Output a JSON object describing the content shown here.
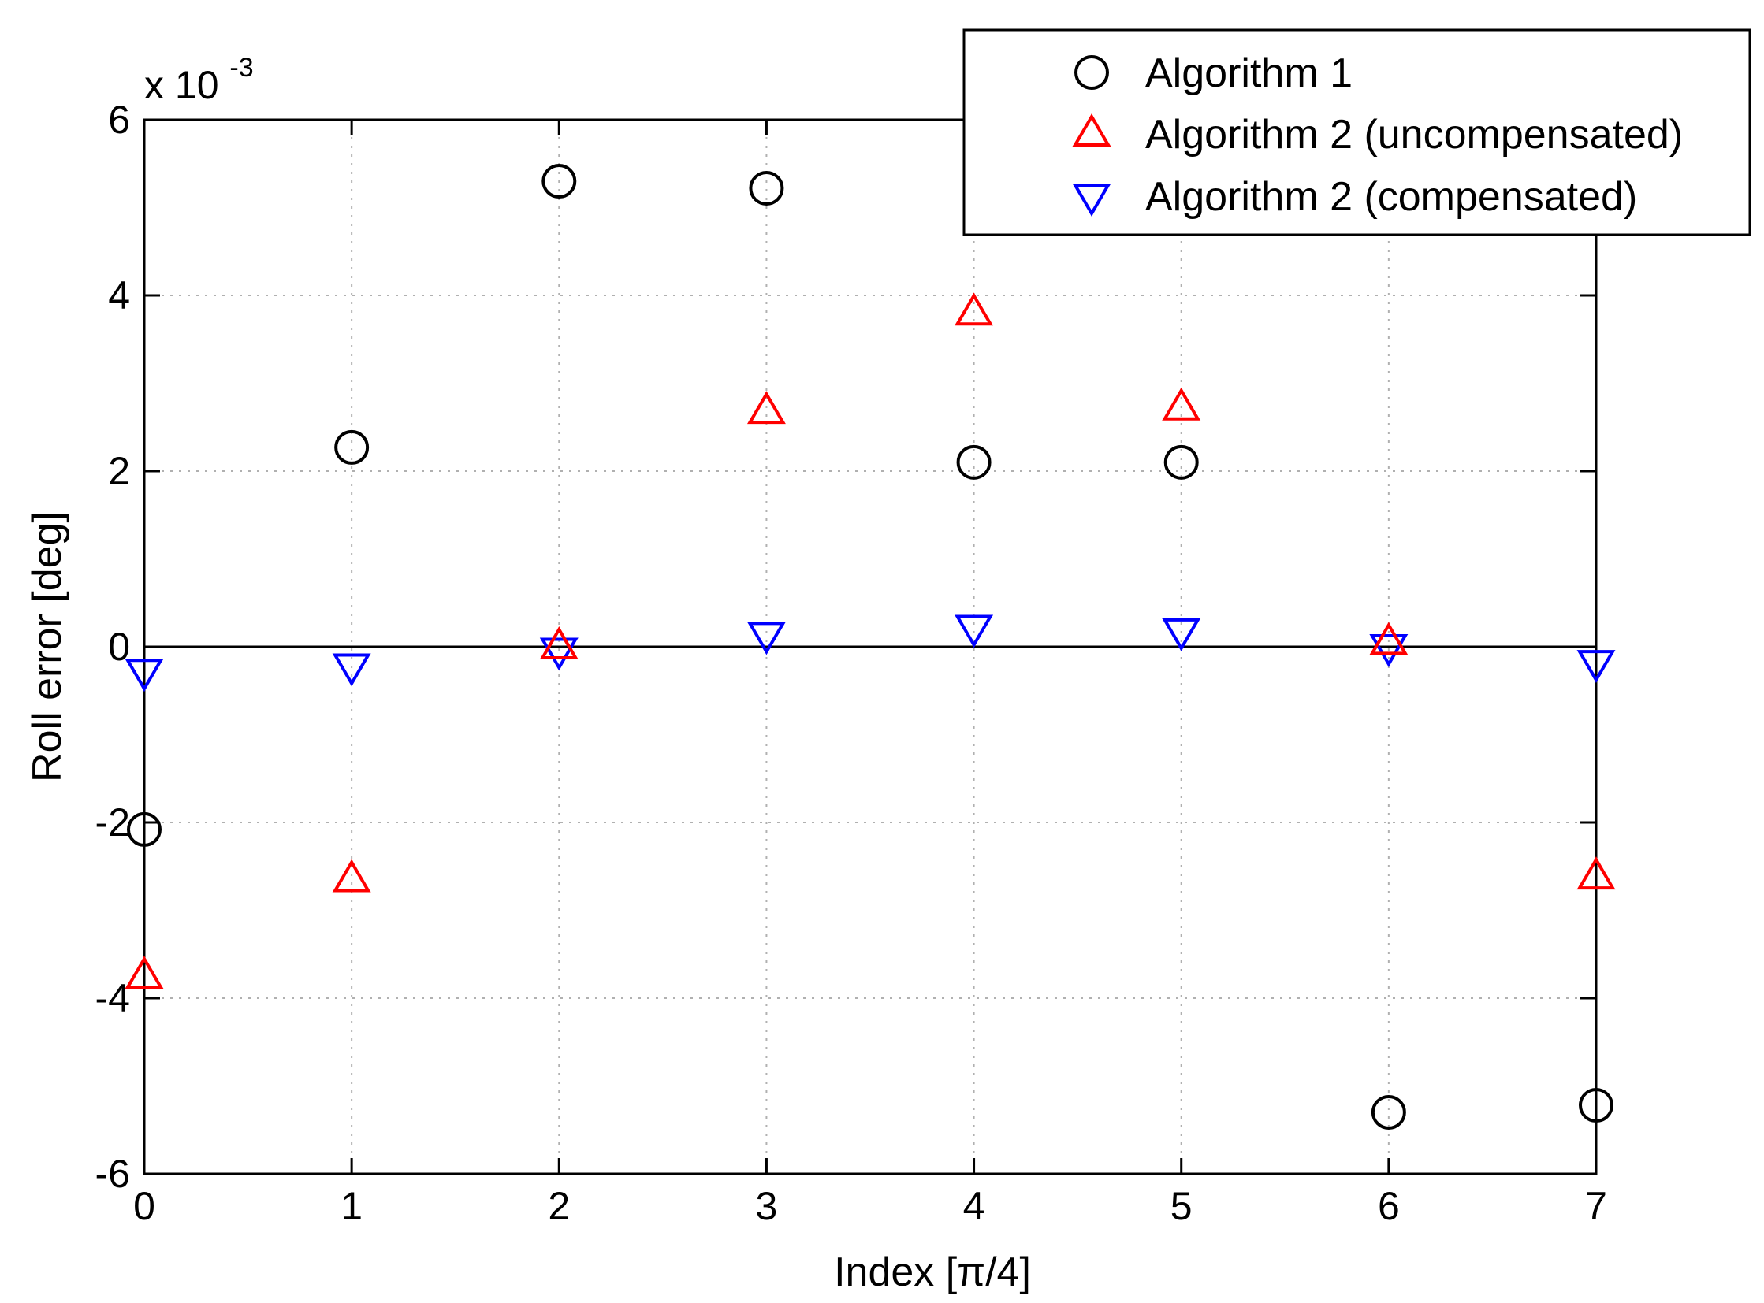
{
  "chart_data": {
    "type": "scatter",
    "title": "",
    "xlabel": "Index [π/4]",
    "ylabel": "Roll error [deg]",
    "y_multiplier_base": "x 10",
    "y_multiplier_exponent": "-3",
    "xlim": [
      0,
      7
    ],
    "ylim": [
      -6,
      6
    ],
    "xticks": [
      0,
      1,
      2,
      3,
      4,
      5,
      6,
      7
    ],
    "yticks": [
      -6,
      -4,
      -2,
      0,
      2,
      4,
      6
    ],
    "grid": true,
    "legend_position": "top-right",
    "x": [
      0,
      1,
      2,
      3,
      4,
      5,
      6,
      7
    ],
    "series": [
      {
        "name": "Algorithm 1",
        "marker": "circle",
        "color": "#000000",
        "values": [
          -2.08,
          2.27,
          5.3,
          5.22,
          2.1,
          2.1,
          -5.3,
          -5.22
        ]
      },
      {
        "name": "Algorithm 2 (uncompensated)",
        "marker": "triangle-up",
        "color": "#ff0000",
        "values": [
          -3.75,
          -2.65,
          0.0,
          2.68,
          3.8,
          2.72,
          0.05,
          -2.62
        ]
      },
      {
        "name": "Algorithm 2 (compensated)",
        "marker": "triangle-down",
        "color": "#0000ff",
        "values": [
          -0.28,
          -0.22,
          -0.04,
          0.14,
          0.22,
          0.18,
          0.0,
          -0.18
        ]
      }
    ]
  }
}
